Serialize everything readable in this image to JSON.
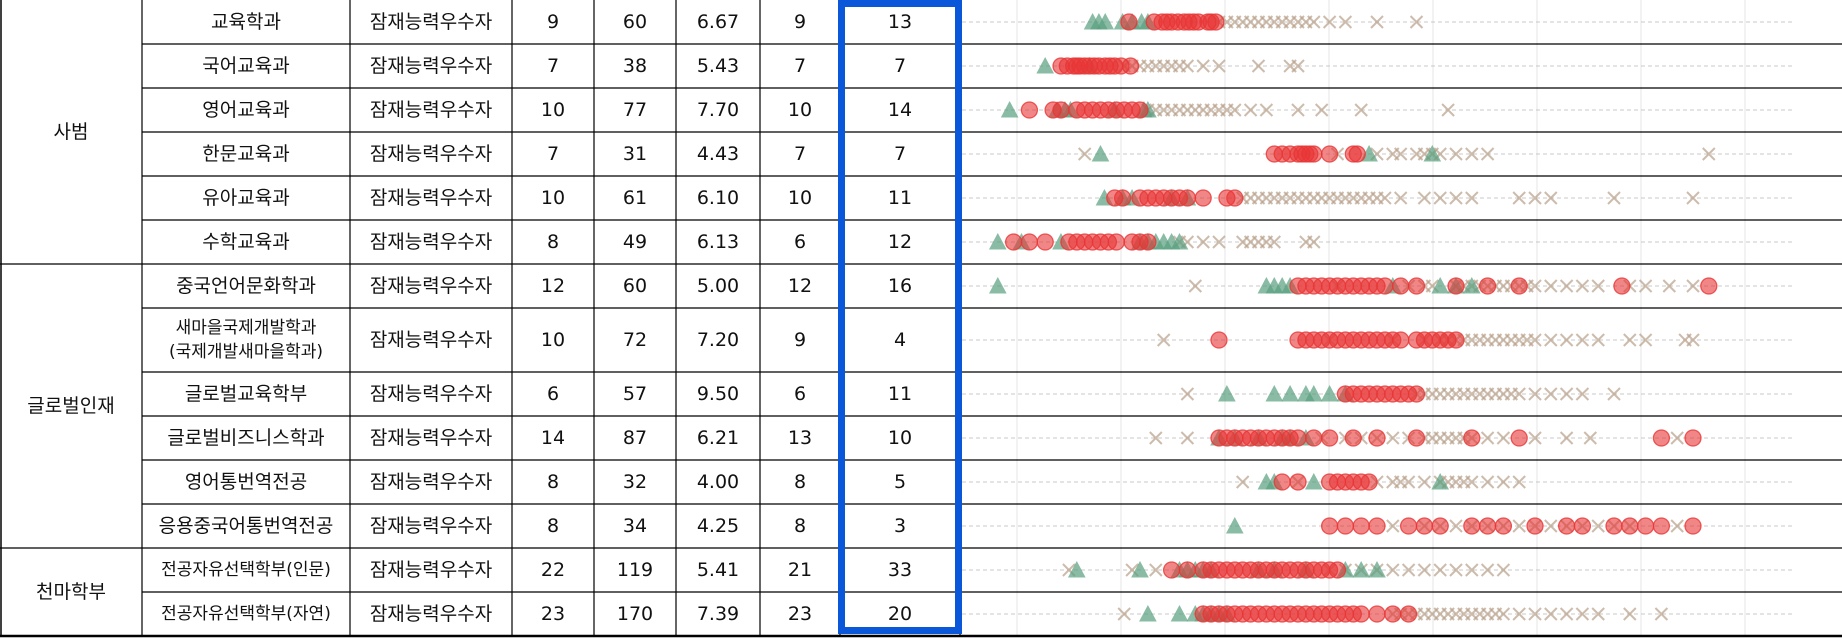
{
  "groups": [
    {
      "name": "사범",
      "rows": [
        {
          "dept": "교육학과",
          "type": "잠재능력우수자",
          "c1": "9",
          "c2": "60",
          "c3": "6.67",
          "c4": "9",
          "c5": "13"
        },
        {
          "dept": "국어교육과",
          "type": "잠재능력우수자",
          "c1": "7",
          "c2": "38",
          "c3": "5.43",
          "c4": "7",
          "c5": "7"
        },
        {
          "dept": "영어교육과",
          "type": "잠재능력우수자",
          "c1": "10",
          "c2": "77",
          "c3": "7.70",
          "c4": "10",
          "c5": "14"
        },
        {
          "dept": "한문교육과",
          "type": "잠재능력우수자",
          "c1": "7",
          "c2": "31",
          "c3": "4.43",
          "c4": "7",
          "c5": "7"
        },
        {
          "dept": "유아교육과",
          "type": "잠재능력우수자",
          "c1": "10",
          "c2": "61",
          "c3": "6.10",
          "c4": "10",
          "c5": "11"
        },
        {
          "dept": "수학교육과",
          "type": "잠재능력우수자",
          "c1": "8",
          "c2": "49",
          "c3": "6.13",
          "c4": "6",
          "c5": "12"
        }
      ]
    },
    {
      "name": "글로벌인재",
      "rows": [
        {
          "dept": "중국언어문화학과",
          "type": "잠재능력우수자",
          "c1": "12",
          "c2": "60",
          "c3": "5.00",
          "c4": "12",
          "c5": "16"
        },
        {
          "dept": "새마을국제개발학과\n(국제개발새마을학과)",
          "type": "잠재능력우수자",
          "c1": "10",
          "c2": "72",
          "c3": "7.20",
          "c4": "9",
          "c5": "4"
        },
        {
          "dept": "글로벌교육학부",
          "type": "잠재능력우수자",
          "c1": "6",
          "c2": "57",
          "c3": "9.50",
          "c4": "6",
          "c5": "11"
        },
        {
          "dept": "글로벌비즈니스학과",
          "type": "잠재능력우수자",
          "c1": "14",
          "c2": "87",
          "c3": "6.21",
          "c4": "13",
          "c5": "10"
        },
        {
          "dept": "영어통번역전공",
          "type": "잠재능력우수자",
          "c1": "8",
          "c2": "32",
          "c3": "4.00",
          "c4": "8",
          "c5": "5"
        },
        {
          "dept": "응용중국어통번역전공",
          "type": "잠재능력우수자",
          "c1": "8",
          "c2": "34",
          "c3": "4.25",
          "c4": "8",
          "c5": "3"
        }
      ]
    },
    {
      "name": "천마학부",
      "rows": [
        {
          "dept": "전공자유선택학부(인문)",
          "type": "잠재능력우수자",
          "c1": "22",
          "c2": "119",
          "c3": "5.41",
          "c4": "21",
          "c5": "33"
        },
        {
          "dept": "전공자유선택학부(자연)",
          "type": "잠재능력우수자",
          "c1": "23",
          "c2": "170",
          "c3": "7.39",
          "c4": "23",
          "c5": "20"
        }
      ]
    }
  ],
  "colors": {
    "red": "#e83535",
    "green": "#5aa080",
    "tan": "#b9a08a",
    "highlight": "#0b57d9"
  },
  "chart_data": {
    "type": "scatter",
    "marker_legend": {
      "circle": "red",
      "triangle": "green",
      "x": "tan"
    },
    "grid": true,
    "rows": [
      {
        "red": [
          0.186,
          0.218,
          0.228,
          0.234,
          0.24,
          0.248,
          0.256,
          0.262,
          0.268,
          0.274,
          0.286,
          0.29,
          0.296
        ],
        "green": [
          0.14,
          0.148,
          0.156,
          0.178,
          0.19,
          0.202,
          0.21
        ],
        "tan": [
          0.3,
          0.31,
          0.32,
          0.33,
          0.34,
          0.35,
          0.36,
          0.37,
          0.38,
          0.39,
          0.4,
          0.41,
          0.42,
          0.44,
          0.46,
          0.5,
          0.55
        ]
      },
      {
        "red": [
          0.1,
          0.108,
          0.116,
          0.12,
          0.124,
          0.13,
          0.136,
          0.142,
          0.148,
          0.156,
          0.162,
          0.168,
          0.176,
          0.188
        ],
        "green": [
          0.08,
          0.136
        ],
        "tan": [
          0.18,
          0.19,
          0.2,
          0.21,
          0.22,
          0.23,
          0.24,
          0.25,
          0.26,
          0.28,
          0.3,
          0.35,
          0.39,
          0.4
        ]
      },
      {
        "red": [
          0.06,
          0.09,
          0.1,
          0.12,
          0.13,
          0.14,
          0.15,
          0.16,
          0.17,
          0.18,
          0.19,
          0.2
        ],
        "green": [
          0.035,
          0.095,
          0.105,
          0.112,
          0.168,
          0.205,
          0.21
        ],
        "tan": [
          0.21,
          0.22,
          0.23,
          0.24,
          0.25,
          0.26,
          0.27,
          0.28,
          0.29,
          0.3,
          0.31,
          0.32,
          0.34,
          0.36,
          0.4,
          0.43,
          0.48,
          0.59
        ]
      },
      {
        "red": [
          0.37,
          0.38,
          0.39,
          0.4,
          0.405,
          0.41,
          0.415,
          0.42,
          0.44,
          0.47,
          0.475
        ],
        "green": [
          0.15,
          0.49,
          0.57
        ],
        "tan": [
          0.13,
          0.45,
          0.5,
          0.52,
          0.53,
          0.55,
          0.56,
          0.57,
          0.58,
          0.6,
          0.62,
          0.64,
          0.92
        ]
      },
      {
        "red": [
          0.168,
          0.178,
          0.2,
          0.21,
          0.22,
          0.23,
          0.24,
          0.25,
          0.26,
          0.28,
          0.31,
          0.32
        ],
        "green": [
          0.155,
          0.178,
          0.19,
          0.24,
          0.26
        ],
        "tan": [
          0.33,
          0.34,
          0.35,
          0.36,
          0.37,
          0.38,
          0.39,
          0.4,
          0.41,
          0.42,
          0.43,
          0.44,
          0.45,
          0.46,
          0.47,
          0.48,
          0.49,
          0.5,
          0.51,
          0.53,
          0.56,
          0.58,
          0.6,
          0.62,
          0.68,
          0.7,
          0.72,
          0.8,
          0.9
        ]
      },
      {
        "red": [
          0.04,
          0.06,
          0.08,
          0.11,
          0.12,
          0.13,
          0.14,
          0.15,
          0.16,
          0.17,
          0.19,
          0.2,
          0.21
        ],
        "green": [
          0.02,
          0.05,
          0.1,
          0.2,
          0.21,
          0.22,
          0.23,
          0.24,
          0.25
        ],
        "tan": [
          0.25,
          0.26,
          0.28,
          0.3,
          0.33,
          0.34,
          0.35,
          0.36,
          0.37,
          0.41,
          0.42
        ]
      },
      {
        "red": [
          0.4,
          0.41,
          0.42,
          0.43,
          0.44,
          0.45,
          0.46,
          0.47,
          0.48,
          0.49,
          0.5,
          0.51,
          0.53,
          0.55,
          0.6,
          0.64,
          0.68,
          0.81,
          0.92
        ],
        "green": [
          0.02,
          0.36,
          0.37,
          0.38,
          0.39,
          0.52,
          0.58,
          0.6,
          0.62
        ],
        "tan": [
          0.27,
          0.45,
          0.54,
          0.56,
          0.57,
          0.6,
          0.61,
          0.62,
          0.63,
          0.64,
          0.65,
          0.66,
          0.67,
          0.68,
          0.69,
          0.7,
          0.72,
          0.74,
          0.76,
          0.78,
          0.82,
          0.84,
          0.87,
          0.9
        ]
      },
      {
        "red": [
          0.3,
          0.4,
          0.41,
          0.42,
          0.43,
          0.44,
          0.45,
          0.46,
          0.47,
          0.48,
          0.49,
          0.5,
          0.51,
          0.52,
          0.53,
          0.55,
          0.56,
          0.57,
          0.58,
          0.59,
          0.6
        ],
        "green": [],
        "tan": [
          0.23,
          0.44,
          0.52,
          0.56,
          0.58,
          0.59,
          0.6,
          0.61,
          0.62,
          0.63,
          0.64,
          0.65,
          0.66,
          0.67,
          0.68,
          0.69,
          0.7,
          0.72,
          0.74,
          0.76,
          0.78,
          0.82,
          0.84,
          0.89,
          0.9
        ]
      },
      {
        "red": [
          0.46,
          0.47,
          0.48,
          0.49,
          0.5,
          0.51,
          0.52,
          0.53,
          0.54,
          0.55
        ],
        "green": [
          0.31,
          0.37,
          0.39,
          0.41,
          0.42,
          0.44,
          0.46
        ],
        "tan": [
          0.26,
          0.55,
          0.56,
          0.57,
          0.58,
          0.59,
          0.6,
          0.61,
          0.62,
          0.63,
          0.64,
          0.65,
          0.66,
          0.67,
          0.68,
          0.7,
          0.72,
          0.74,
          0.76,
          0.8
        ]
      },
      {
        "red": [
          0.3,
          0.31,
          0.32,
          0.33,
          0.34,
          0.35,
          0.36,
          0.37,
          0.38,
          0.39,
          0.4,
          0.42,
          0.44,
          0.47,
          0.5,
          0.55,
          0.62,
          0.68,
          0.86,
          0.9
        ],
        "green": [
          0.3,
          0.32,
          0.35,
          0.38,
          0.39,
          0.41
        ],
        "tan": [
          0.22,
          0.26,
          0.43,
          0.46,
          0.48,
          0.5,
          0.52,
          0.54,
          0.56,
          0.57,
          0.58,
          0.59,
          0.6,
          0.61,
          0.62,
          0.64,
          0.66,
          0.7,
          0.74,
          0.77,
          0.88
        ]
      },
      {
        "red": [
          0.38,
          0.4,
          0.44,
          0.45,
          0.46,
          0.47,
          0.48,
          0.49
        ],
        "green": [
          0.36,
          0.37,
          0.42,
          0.58
        ],
        "tan": [
          0.33,
          0.4,
          0.5,
          0.52,
          0.53,
          0.54,
          0.56,
          0.58,
          0.59,
          0.6,
          0.61,
          0.62,
          0.64,
          0.66,
          0.68
        ]
      },
      {
        "red": [
          0.44,
          0.46,
          0.48,
          0.5,
          0.54,
          0.56,
          0.58,
          0.62,
          0.64,
          0.66,
          0.7,
          0.74,
          0.76,
          0.8,
          0.82,
          0.84,
          0.86,
          0.9
        ],
        "green": [
          0.32
        ],
        "tan": [
          0.52,
          0.56,
          0.58,
          0.6,
          0.62,
          0.64,
          0.66,
          0.68,
          0.7,
          0.72,
          0.74,
          0.76,
          0.78,
          0.8,
          0.82,
          0.88
        ]
      },
      {
        "red": [
          0.24,
          0.26,
          0.28,
          0.29,
          0.3,
          0.31,
          0.32,
          0.33,
          0.34,
          0.35,
          0.36,
          0.37,
          0.38,
          0.39,
          0.4,
          0.41,
          0.42,
          0.43,
          0.44,
          0.45
        ],
        "green": [
          0.12,
          0.2,
          0.25,
          0.26,
          0.27,
          0.28,
          0.29,
          0.35,
          0.37,
          0.41,
          0.46,
          0.48,
          0.5
        ],
        "tan": [
          0.11,
          0.19,
          0.22,
          0.44,
          0.46,
          0.48,
          0.5,
          0.52,
          0.54,
          0.56,
          0.58,
          0.6,
          0.62,
          0.64,
          0.66
        ]
      },
      {
        "red": [
          0.28,
          0.29,
          0.3,
          0.31,
          0.32,
          0.33,
          0.34,
          0.35,
          0.36,
          0.37,
          0.38,
          0.39,
          0.4,
          0.41,
          0.42,
          0.43,
          0.44,
          0.45,
          0.46,
          0.47,
          0.48,
          0.5,
          0.52,
          0.54
        ],
        "green": [
          0.21,
          0.25,
          0.27,
          0.28,
          0.29,
          0.3,
          0.31
        ],
        "tan": [
          0.18,
          0.52,
          0.53,
          0.54,
          0.55,
          0.56,
          0.57,
          0.58,
          0.59,
          0.6,
          0.61,
          0.62,
          0.63,
          0.64,
          0.65,
          0.66,
          0.68,
          0.7,
          0.72,
          0.74,
          0.76,
          0.78,
          0.82,
          0.86
        ]
      }
    ]
  }
}
